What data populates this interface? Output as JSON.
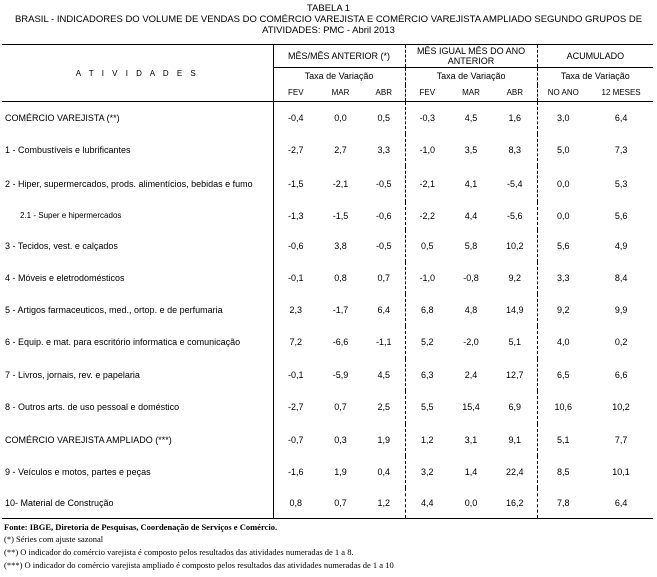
{
  "header": {
    "table_no": "TABELA 1",
    "title_line1": "BRASIL - INDICADORES DO VOLUME DE VENDAS DO COMÉRCIO VAREJISTA E COMÉRCIO VAREJISTA AMPLIADO SEGUNDO GRUPOS DE",
    "title_line2": "ATIVIDADES: PMC - Abril 2013"
  },
  "columns": {
    "atividades": "A T I V I D A D E S",
    "group1": "MÊS/MÊS ANTERIOR (*)",
    "group2_line1": "MÊS IGUAL MÊS DO ANO",
    "group2_line2": "ANTERIOR",
    "group3": "ACUMULADO",
    "taxa": "Taxa de Variação",
    "sub1": [
      "FEV",
      "MAR",
      "ABR"
    ],
    "sub2": [
      "FEV",
      "MAR",
      "ABR"
    ],
    "sub3": [
      "NO ANO",
      "12 MESES"
    ]
  },
  "rows": [
    {
      "label": "COMÉRCIO VAREJISTA (**)",
      "v": [
        "-0,4",
        "0,0",
        "0,5",
        "-0,3",
        "4,5",
        "1,6",
        "3,0",
        "6,4"
      ]
    },
    {
      "label": "1 - Combustíveis e lubrificantes",
      "v": [
        "-2,7",
        "2,7",
        "3,3",
        "-1,0",
        "3,5",
        "8,3",
        "5,0",
        "7,3"
      ]
    },
    {
      "label": "2 - Hiper, supermercados, prods. alimentícios, bebidas e fumo",
      "v": [
        "-1,5",
        "-2,1",
        "-0,5",
        "-2,1",
        "4,1",
        "-5,4",
        "0,0",
        "5,3"
      ]
    },
    {
      "label": "2.1 - Super e hipermercados",
      "v": [
        "-1,3",
        "-1,5",
        "-0,6",
        "-2,2",
        "4,4",
        "-5,6",
        "0,0",
        "5,6"
      ]
    },
    {
      "label": "3 - Tecidos, vest. e calçados",
      "v": [
        "-0,6",
        "3,8",
        "-0,5",
        "0,5",
        "5,8",
        "10,2",
        "5,6",
        "4,9"
      ]
    },
    {
      "label": "4 - Móveis e eletrodomésticos",
      "v": [
        "-0,1",
        "0,8",
        "0,7",
        "-1,0",
        "-0,8",
        "9,2",
        "3,3",
        "8,4"
      ]
    },
    {
      "label": "5 - Artigos farmaceuticos, med., ortop. e de perfumaria",
      "v": [
        "2,3",
        "-1,7",
        "6,4",
        "6,8",
        "4,8",
        "14,9",
        "9,2",
        "9,9"
      ]
    },
    {
      "label": "6 - Equip. e mat. para escritório informatica e comunicação",
      "v": [
        "7,2",
        "-6,6",
        "-1,1",
        "5,2",
        "-2,0",
        "5,1",
        "4,0",
        "0,2"
      ]
    },
    {
      "label": "7 - Livros, jornais, rev. e papelaria",
      "v": [
        "-0,1",
        "-5,9",
        "4,5",
        "6,3",
        "2,4",
        "12,7",
        "6,5",
        "6,6"
      ]
    },
    {
      "label": "8 - Outros arts. de uso pessoal e doméstico",
      "v": [
        "-2,7",
        "0,7",
        "2,5",
        "5,5",
        "15,4",
        "6,9",
        "10,6",
        "10,2"
      ]
    },
    {
      "label": "COMÉRCIO VAREJISTA AMPLIADO (***)",
      "v": [
        "-0,7",
        "0,3",
        "1,9",
        "1,2",
        "3,1",
        "9,1",
        "5,1",
        "7,7"
      ]
    },
    {
      "label": "9 - Veículos e motos, partes e peças",
      "v": [
        "-1,6",
        "1,9",
        "0,4",
        "3,2",
        "1,4",
        "22,4",
        "8,5",
        "10,1"
      ]
    },
    {
      "label": "10- Material de Construção",
      "v": [
        "0,8",
        "0,7",
        "1,2",
        "4,4",
        "0,0",
        "16,2",
        "7,8",
        "6,4"
      ]
    }
  ],
  "footer": {
    "fonte": "Fonte: IBGE, Diretoria de Pesquisas, Coordenação de Serviços e Comércio.",
    "note1": "(*) Séries com ajuste sazonal",
    "note2": "(**) O indicador do comércio varejista é composto pelos resultados das atividades numeradas de 1 a 8.",
    "note3": "(***) O indicador do comércio varejista ampliado é composto pelos resultados das atividades numeradas de 1 a 10"
  }
}
